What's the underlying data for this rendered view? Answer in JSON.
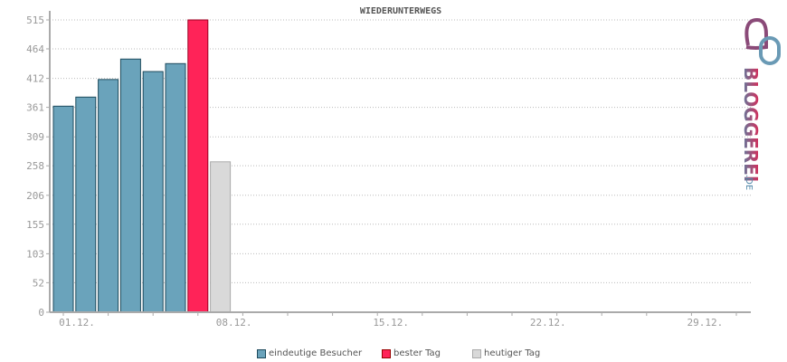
{
  "chart_data": {
    "type": "bar",
    "title": "WIEDERUNTERWEGS",
    "x_tick_labels": [
      "01.12.",
      "08.12.",
      "15.12.",
      "22.12.",
      "29.12."
    ],
    "x_tick_days": [
      1,
      8,
      15,
      22,
      29
    ],
    "days_in_axis": 31,
    "y_ticks": [
      0,
      52,
      103,
      155,
      206,
      258,
      309,
      361,
      412,
      464,
      515
    ],
    "ylim": [
      0,
      515
    ],
    "grid": true,
    "series": [
      {
        "name": "eindeutige Besucher",
        "color": "#6aa3bb",
        "days": [
          1,
          2,
          3,
          4,
          5,
          6
        ],
        "values": [
          363,
          379,
          410,
          446,
          424,
          438
        ]
      },
      {
        "name": "bester Tag",
        "color": "#ff2358",
        "days": [
          7
        ],
        "values": [
          515
        ]
      },
      {
        "name": "heutiger Tag",
        "color": "#d9d9d9",
        "days": [
          8
        ],
        "values": [
          265
        ]
      }
    ],
    "legend_position": "bottom"
  },
  "logo": {
    "text": "BLOGGEREI",
    "suffix": ".DE"
  }
}
